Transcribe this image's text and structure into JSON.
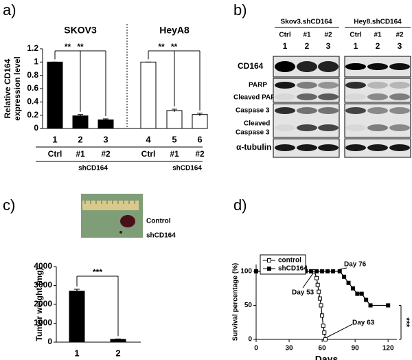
{
  "panel_labels": [
    "a)",
    "b)",
    "c)",
    "d)"
  ],
  "chart_data": [
    {
      "type": "bar",
      "group_labels": [
        "SKOV3",
        "HeyA8"
      ],
      "ylabel": [
        "Relative CD164",
        "expression level"
      ],
      "categories": [
        "1",
        "2",
        "3",
        "4",
        "5",
        "6"
      ],
      "sublabels": [
        "Ctrl",
        "#1",
        "#2",
        "Ctrl",
        "#1",
        "#2"
      ],
      "bracket_labels": [
        "shCD164",
        "shCD164"
      ],
      "values": [
        1,
        0.19,
        0.13,
        1,
        0.27,
        0.21
      ],
      "errors": [
        0,
        0.02,
        0.015,
        0,
        0.02,
        0.02
      ],
      "colors": [
        "#000000",
        "#000000",
        "#000000",
        "#ffffff",
        "#ffffff",
        "#ffffff"
      ],
      "annotations": [
        "**",
        "**",
        "**",
        "**"
      ],
      "ylim": [
        0,
        1.2
      ],
      "yticks": [
        0,
        0.2,
        0.4,
        0.6,
        0.8,
        1,
        1.2
      ]
    },
    {
      "type": "bar",
      "ylabel": [
        "Tumor weight (mg)"
      ],
      "categories": [
        "1",
        "2"
      ],
      "sublabels": [
        "Control",
        "shCD164"
      ],
      "values": [
        2700,
        150
      ],
      "errors": [
        100,
        20
      ],
      "colors": [
        "#000000",
        "#000000"
      ],
      "annotations": [
        "***"
      ],
      "ylim": [
        0,
        4000
      ],
      "yticks": [
        0,
        1000,
        2000,
        3000,
        4000
      ]
    },
    {
      "type": "line",
      "xlabel": "Days",
      "ylabel": "Survival percentage (%)",
      "legend": "upper left",
      "series": [
        {
          "name": "control",
          "color": "#000000",
          "fill": "#ffffff",
          "x": [
            0,
            50,
            53,
            55,
            56,
            57,
            58,
            59,
            60,
            61,
            62,
            63
          ],
          "values": [
            100,
            100,
            100,
            90,
            80,
            70,
            60,
            50,
            35,
            20,
            10,
            0
          ]
        },
        {
          "name": "shCD164",
          "color": "#000000",
          "fill": "#000000",
          "x": [
            0,
            45,
            50,
            55,
            60,
            65,
            70,
            76,
            80,
            84,
            88,
            92,
            96,
            100,
            104,
            120
          ],
          "values": [
            100,
            100,
            100,
            100,
            100,
            100,
            100,
            100,
            92,
            83,
            75,
            67,
            67,
            58,
            50,
            50
          ]
        }
      ],
      "annotations": [
        "Day 53",
        "Day 76",
        "Day 63",
        "***"
      ],
      "xlim": [
        0,
        128
      ],
      "xticks": [
        0,
        30,
        60,
        90,
        120
      ],
      "ylim": [
        0,
        110
      ],
      "yticks": [
        0,
        50,
        100
      ]
    }
  ],
  "blot": {
    "groups": [
      "Skov3.shCD164",
      "Hey8.shCD164"
    ],
    "lanes": [
      "Ctrl",
      "#1",
      "#2"
    ],
    "lane_numbers": [
      "1",
      "2",
      "3"
    ],
    "rows": [
      "CD164",
      "PARP",
      "Cleaved PARP",
      "Caspase 3",
      "Cleaved",
      "Caspase 3",
      "α-tubulin"
    ]
  },
  "photo": {
    "labels": [
      "Control",
      "shCD164"
    ]
  }
}
